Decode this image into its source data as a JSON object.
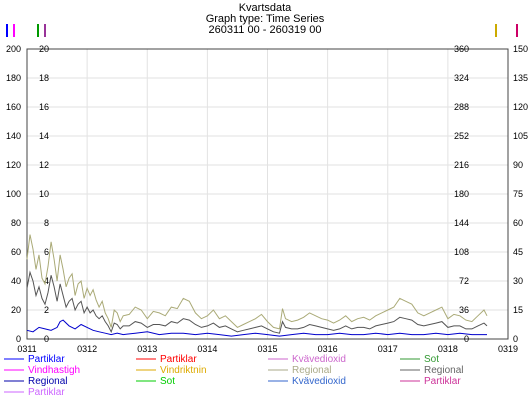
{
  "chart_data": {
    "type": "line",
    "title": "Kvartsdata",
    "subtitle": "Graph type: Time Series",
    "date_range": "260311 00 - 260319 00",
    "x_range": [
      "0311",
      "0319"
    ],
    "x_ticks": [
      "0311",
      "0312",
      "0313",
      "0314",
      "0315",
      "0316",
      "0317",
      "0318",
      "0319"
    ],
    "grid": true,
    "legend_position": "bottom",
    "axes": {
      "left_outer": {
        "range": [
          0,
          200
        ],
        "ticks": [
          "0",
          "20",
          "40",
          "60",
          "80",
          "100",
          "120",
          "140",
          "160",
          "180",
          "200"
        ],
        "marker_colors": [
          "#0000ff",
          "#ff00ff"
        ]
      },
      "left_inner": {
        "range": [
          0,
          20
        ],
        "ticks": [
          "0",
          "2",
          "4",
          "6",
          "8",
          "10",
          "12",
          "14",
          "16",
          "18",
          "20"
        ],
        "marker_colors": [
          "#009900",
          "#993399"
        ]
      },
      "right_inner": {
        "range": [
          0,
          360
        ],
        "ticks": [
          "0",
          "36",
          "72",
          "108",
          "144",
          "180",
          "216",
          "252",
          "288",
          "324",
          "360"
        ],
        "marker_colors": [
          "#ccaa00"
        ]
      },
      "right_outer": {
        "range": [
          0,
          150
        ],
        "ticks": [
          "0",
          "15",
          "30",
          "45",
          "60",
          "75",
          "90",
          "105",
          "120",
          "135",
          "150"
        ],
        "marker_colors": [
          "#cc0066"
        ]
      }
    },
    "legend": [
      {
        "label": "Partiklar",
        "color": "#0000ff"
      },
      {
        "label": "Partiklar",
        "color": "#ff0000"
      },
      {
        "label": "Kvävedioxid",
        "color": "#cc66cc"
      },
      {
        "label": "Sot",
        "color": "#339933"
      },
      {
        "label": "Vindhastigh",
        "color": "#ff00ff"
      },
      {
        "label": "Vindriktnin",
        "color": "#ddaa00"
      },
      {
        "label": "Regional",
        "color": "#aaaa88"
      },
      {
        "label": "Regional",
        "color": "#666666"
      },
      {
        "label": "Regional",
        "color": "#0000aa"
      },
      {
        "label": "Sot",
        "color": "#00cc00"
      },
      {
        "label": "Kvävedioxid",
        "color": "#3366cc"
      },
      {
        "label": "Partiklar",
        "color": "#cc3399"
      },
      {
        "label": "Partiklar",
        "color": "#cc66ff"
      }
    ],
    "series": [
      {
        "color": "#aaaa77",
        "axis": "left_outer",
        "x": [
          11.0,
          11.05,
          11.1,
          11.15,
          11.2,
          11.25,
          11.3,
          11.35,
          11.4,
          11.45,
          11.5,
          11.55,
          11.6,
          11.65,
          11.7,
          11.75,
          11.8,
          11.85,
          11.9,
          11.95,
          12.0,
          12.05,
          12.1,
          12.15,
          12.2,
          12.25,
          12.3,
          12.35,
          12.4,
          12.45,
          12.5,
          12.55,
          12.6,
          12.7,
          12.8,
          12.9,
          13.0,
          13.1,
          13.2,
          13.3,
          13.4,
          13.5,
          13.6,
          13.7,
          13.8,
          13.9,
          14.0,
          14.1,
          14.2,
          14.3,
          14.4,
          14.5,
          14.6,
          14.7,
          14.8,
          14.9,
          15.0,
          15.1,
          15.2,
          15.25,
          15.3,
          15.4,
          15.5,
          15.6,
          15.7,
          15.8,
          15.9,
          16.0,
          16.1,
          16.2,
          16.3,
          16.4,
          16.5,
          16.6,
          16.7,
          16.8,
          16.9,
          17.0,
          17.1,
          17.2,
          17.3,
          17.4,
          17.5,
          17.6,
          17.7,
          17.8,
          17.9,
          18.0,
          18.1,
          18.2,
          18.3,
          18.4,
          18.5,
          18.6,
          18.65
        ],
        "y": [
          55,
          72,
          62,
          48,
          58,
          42,
          38,
          50,
          67,
          55,
          40,
          58,
          48,
          36,
          42,
          45,
          30,
          38,
          40,
          28,
          35,
          30,
          34,
          27,
          22,
          26,
          18,
          14,
          8,
          20,
          18,
          12,
          16,
          17,
          22,
          20,
          14,
          19,
          18,
          16,
          22,
          21,
          28,
          26,
          18,
          14,
          16,
          20,
          14,
          16,
          12,
          8,
          10,
          12,
          14,
          17,
          12,
          8,
          7,
          21,
          14,
          12,
          13,
          15,
          18,
          16,
          14,
          13,
          11,
          13,
          16,
          12,
          14,
          15,
          13,
          16,
          18,
          20,
          22,
          28,
          26,
          24,
          18,
          16,
          18,
          20,
          22,
          14,
          17,
          16,
          13,
          12,
          16,
          20,
          16
        ]
      },
      {
        "color": "#555555",
        "axis": "left_outer",
        "x": [
          11.0,
          11.05,
          11.1,
          11.15,
          11.2,
          11.25,
          11.3,
          11.35,
          11.4,
          11.45,
          11.5,
          11.55,
          11.6,
          11.65,
          11.7,
          11.75,
          11.8,
          11.85,
          11.9,
          11.95,
          12.0,
          12.05,
          12.1,
          12.15,
          12.2,
          12.25,
          12.3,
          12.35,
          12.4,
          12.45,
          12.5,
          12.55,
          12.6,
          12.7,
          12.8,
          12.9,
          13.0,
          13.1,
          13.2,
          13.3,
          13.4,
          13.5,
          13.6,
          13.7,
          13.8,
          13.9,
          14.0,
          14.1,
          14.2,
          14.3,
          14.4,
          14.5,
          14.6,
          14.7,
          14.8,
          14.9,
          15.0,
          15.1,
          15.2,
          15.25,
          15.3,
          15.4,
          15.5,
          15.6,
          15.7,
          15.8,
          15.9,
          16.0,
          16.1,
          16.2,
          16.3,
          16.4,
          16.5,
          16.6,
          16.7,
          16.8,
          16.9,
          17.0,
          17.1,
          17.2,
          17.3,
          17.4,
          17.5,
          17.6,
          17.7,
          17.8,
          17.9,
          18.0,
          18.1,
          18.2,
          18.3,
          18.4,
          18.5,
          18.6,
          18.65
        ],
        "y": [
          35,
          46,
          40,
          30,
          36,
          28,
          24,
          32,
          44,
          36,
          26,
          38,
          30,
          22,
          26,
          28,
          20,
          24,
          26,
          18,
          22,
          18,
          20,
          16,
          14,
          16,
          12,
          9,
          5,
          11,
          10,
          7,
          9,
          9,
          12,
          11,
          8,
          10,
          10,
          9,
          12,
          11,
          14,
          13,
          10,
          8,
          9,
          11,
          8,
          9,
          7,
          5,
          6,
          7,
          8,
          9,
          7,
          5,
          4,
          12,
          8,
          7,
          7,
          8,
          10,
          9,
          8,
          7,
          6,
          7,
          9,
          7,
          8,
          8,
          7,
          9,
          10,
          11,
          12,
          15,
          14,
          13,
          10,
          9,
          10,
          11,
          12,
          8,
          9,
          9,
          7,
          7,
          9,
          11,
          9
        ]
      },
      {
        "color": "#0000cc",
        "axis": "left_outer",
        "x": [
          11.0,
          11.1,
          11.2,
          11.3,
          11.4,
          11.5,
          11.55,
          11.6,
          11.7,
          11.8,
          11.9,
          12.0,
          12.1,
          12.2,
          12.3,
          12.4,
          12.5,
          12.6,
          12.8,
          13.0,
          13.2,
          13.4,
          13.6,
          13.8,
          14.0,
          14.2,
          14.4,
          14.6,
          14.8,
          15.0,
          15.2,
          15.4,
          15.6,
          15.8,
          16.0,
          16.2,
          16.4,
          16.6,
          16.8,
          17.0,
          17.2,
          17.4,
          17.6,
          17.8,
          18.0,
          18.2,
          18.4,
          18.6,
          18.65
        ],
        "y": [
          6,
          5,
          8,
          7,
          6,
          8,
          12,
          13,
          9,
          7,
          10,
          8,
          6,
          5,
          4,
          3,
          4,
          3,
          4,
          5,
          3,
          4,
          4,
          3,
          4,
          3,
          2,
          3,
          4,
          3,
          2,
          3,
          4,
          3,
          3,
          4,
          3,
          3,
          4,
          3,
          4,
          3,
          3,
          4,
          3,
          4,
          3,
          3,
          3
        ]
      }
    ]
  }
}
